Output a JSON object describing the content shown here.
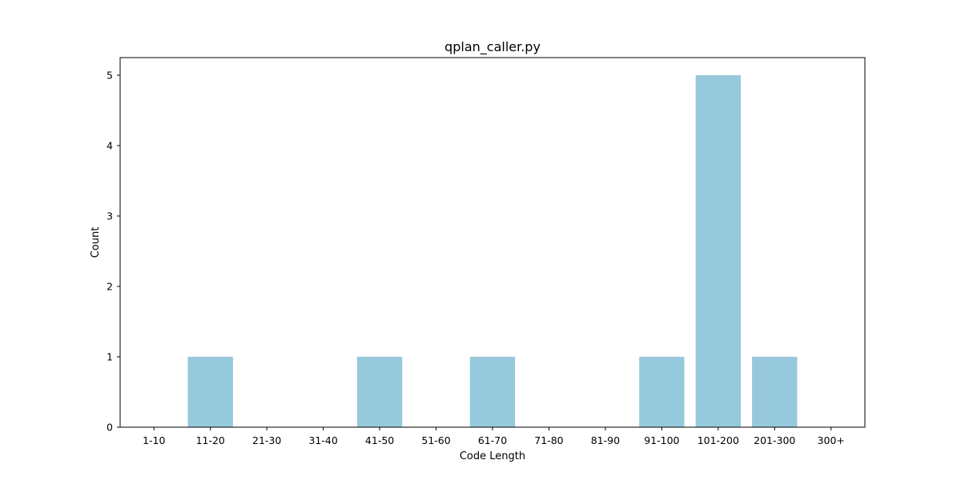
{
  "chart_data": {
    "type": "bar",
    "title": "qplan_caller.py",
    "xlabel": "Code Length",
    "ylabel": "Count",
    "categories": [
      "1-10",
      "11-20",
      "21-30",
      "31-40",
      "41-50",
      "51-60",
      "61-70",
      "71-80",
      "81-90",
      "91-100",
      "101-200",
      "201-300",
      "300+"
    ],
    "values": [
      0,
      1,
      0,
      0,
      1,
      0,
      1,
      0,
      0,
      1,
      5,
      1,
      0
    ],
    "ylim": [
      0,
      5.25
    ],
    "yticks": [
      0,
      1,
      2,
      3,
      4,
      5
    ],
    "grid": false,
    "bar_color": "#96c9dc",
    "axis_color": "#000000"
  }
}
